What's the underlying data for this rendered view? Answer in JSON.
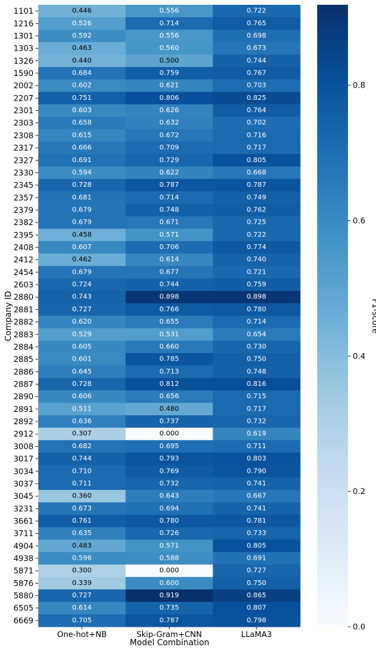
{
  "chart_data": {
    "type": "heatmap",
    "ylabel": "Company ID",
    "xlabel": "Model Combination",
    "colorbar_label": "F1-score",
    "colormap": "Blues",
    "vmin": 0.0,
    "vmax": 0.919,
    "colorbar_ticks": [
      "0.0",
      "0.2",
      "0.4",
      "0.6",
      "0.8"
    ],
    "columns": [
      "One-hot+NB",
      "Skip-Gram+CNN",
      "LLaMA3"
    ],
    "rows": [
      "1101",
      "1216",
      "1301",
      "1303",
      "1326",
      "1590",
      "2002",
      "2207",
      "2301",
      "2303",
      "2308",
      "2317",
      "2327",
      "2330",
      "2345",
      "2357",
      "2379",
      "2382",
      "2395",
      "2408",
      "2412",
      "2454",
      "2603",
      "2880",
      "2881",
      "2882",
      "2883",
      "2884",
      "2885",
      "2886",
      "2887",
      "2890",
      "2891",
      "2892",
      "2912",
      "3008",
      "3017",
      "3034",
      "3037",
      "3045",
      "3231",
      "3661",
      "3711",
      "4904",
      "4938",
      "5871",
      "5876",
      "5880",
      "6505",
      "6669"
    ],
    "values": [
      [
        0.446,
        0.556,
        0.722
      ],
      [
        0.526,
        0.714,
        0.765
      ],
      [
        0.592,
        0.556,
        0.698
      ],
      [
        0.463,
        0.56,
        0.673
      ],
      [
        0.44,
        0.5,
        0.744
      ],
      [
        0.684,
        0.759,
        0.767
      ],
      [
        0.602,
        0.621,
        0.703
      ],
      [
        0.751,
        0.806,
        0.825
      ],
      [
        0.603,
        0.626,
        0.764
      ],
      [
        0.658,
        0.632,
        0.702
      ],
      [
        0.615,
        0.672,
        0.716
      ],
      [
        0.666,
        0.709,
        0.717
      ],
      [
        0.691,
        0.729,
        0.805
      ],
      [
        0.594,
        0.622,
        0.668
      ],
      [
        0.728,
        0.787,
        0.787
      ],
      [
        0.681,
        0.714,
        0.749
      ],
      [
        0.679,
        0.748,
        0.762
      ],
      [
        0.679,
        0.671,
        0.725
      ],
      [
        0.458,
        0.571,
        0.722
      ],
      [
        0.607,
        0.706,
        0.774
      ],
      [
        0.462,
        0.614,
        0.74
      ],
      [
        0.679,
        0.677,
        0.721
      ],
      [
        0.724,
        0.744,
        0.759
      ],
      [
        0.743,
        0.898,
        0.898
      ],
      [
        0.727,
        0.766,
        0.78
      ],
      [
        0.62,
        0.655,
        0.714
      ],
      [
        0.529,
        0.531,
        0.654
      ],
      [
        0.605,
        0.66,
        0.73
      ],
      [
        0.601,
        0.785,
        0.75
      ],
      [
        0.645,
        0.713,
        0.748
      ],
      [
        0.728,
        0.812,
        0.816
      ],
      [
        0.606,
        0.656,
        0.715
      ],
      [
        0.511,
        0.48,
        0.717
      ],
      [
        0.636,
        0.737,
        0.732
      ],
      [
        0.307,
        0.0,
        0.619
      ],
      [
        0.682,
        0.695,
        0.711
      ],
      [
        0.744,
        0.793,
        0.803
      ],
      [
        0.71,
        0.769,
        0.79
      ],
      [
        0.711,
        0.732,
        0.741
      ],
      [
        0.36,
        0.643,
        0.667
      ],
      [
        0.673,
        0.694,
        0.741
      ],
      [
        0.761,
        0.78,
        0.781
      ],
      [
        0.635,
        0.726,
        0.733
      ],
      [
        0.483,
        0.571,
        0.805
      ],
      [
        0.596,
        0.588,
        0.691
      ],
      [
        0.3,
        0.0,
        0.727
      ],
      [
        0.339,
        0.6,
        0.75
      ],
      [
        0.727,
        0.919,
        0.865
      ],
      [
        0.614,
        0.735,
        0.807
      ],
      [
        0.705,
        0.787,
        0.798
      ]
    ]
  }
}
